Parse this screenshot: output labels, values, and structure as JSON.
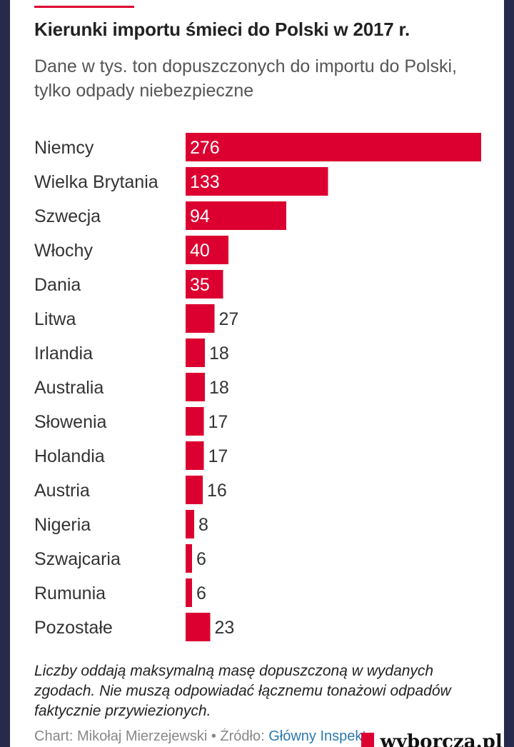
{
  "header": {
    "title": "Kierunki importu śmieci do Polski w 2017 r.",
    "subtitle": "Dane w tys. ton dopuszczonych do importu do Polski, tylko odpady niebezpieczne"
  },
  "chart_data": {
    "type": "bar",
    "orientation": "horizontal",
    "title": "Kierunki importu śmieci do Polski w 2017 r.",
    "subtitle": "Dane w tys. ton dopuszczonych do importu do Polski, tylko odpady niebezpieczne",
    "categories": [
      "Niemcy",
      "Wielka Brytania",
      "Szwecja",
      "Włochy",
      "Dania",
      "Litwa",
      "Irlandia",
      "Australia",
      "Słowenia",
      "Holandia",
      "Austria",
      "Nigeria",
      "Szwajcaria",
      "Rumunia",
      "Pozostałe"
    ],
    "values": [
      276,
      133,
      94,
      40,
      35,
      27,
      18,
      18,
      17,
      17,
      16,
      8,
      6,
      6,
      23
    ],
    "xlim": [
      0,
      276
    ],
    "grid": false,
    "bar_color": "#dc0031",
    "xlabel": "",
    "ylabel": ""
  },
  "footer": {
    "note": "Liczby oddają maksymalną masę dopuszczoną w wydanych zgodach. Nie muszą odpowiadać łącznemu tonażowi odpadów faktycznie przywiezionych.",
    "credit_prefix": "Chart: Mikołaj Mierzejewski • Źródło:",
    "source_link": "Główny Inspektorat Ochrony Środowiska",
    "logo_text": "wyborcza.pl"
  }
}
